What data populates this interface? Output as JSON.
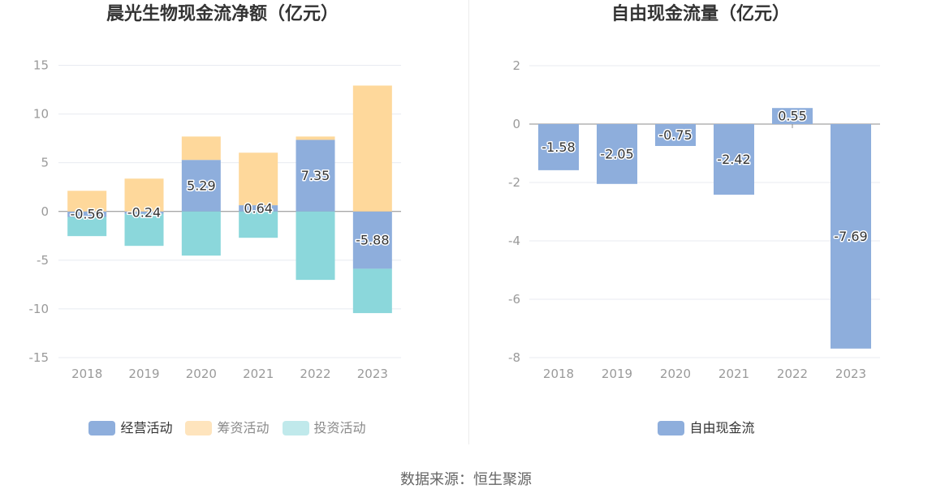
{
  "footer": {
    "source": "数据来源：恒生聚源"
  },
  "chart_data": [
    {
      "type": "bar",
      "stacked": true,
      "title": "晨光生物现金流净额（亿元）",
      "categories": [
        "2018",
        "2019",
        "2020",
        "2021",
        "2022",
        "2023"
      ],
      "series": [
        {
          "name": "经营活动",
          "values": [
            -0.56,
            -0.24,
            5.29,
            0.64,
            7.35,
            -5.88
          ],
          "color": "#8eaedc",
          "legend_color": "#8eaedc",
          "legend_text_color": "#333333",
          "data_labels": true
        },
        {
          "name": "筹资活动",
          "values": [
            2.12,
            3.37,
            2.4,
            5.39,
            0.34,
            12.92
          ],
          "color": "#fed89b",
          "legend_color": "#fee4bd",
          "legend_text_color": "#8a8a8a",
          "data_labels": false
        },
        {
          "name": "投资活动",
          "values": [
            -1.97,
            -3.29,
            -4.53,
            -2.7,
            -7.02,
            -4.55
          ],
          "color": "#8bd7db",
          "legend_color": "#c0e9eb",
          "legend_text_color": "#8a8a8a",
          "data_labels": false
        }
      ],
      "ylim": [
        -15,
        15
      ],
      "yticks": [
        15,
        10,
        5,
        0,
        -5,
        -10,
        -15
      ],
      "grid": true,
      "legend": "bottom"
    },
    {
      "type": "bar",
      "stacked": false,
      "title": "自由现金流量（亿元）",
      "categories": [
        "2018",
        "2019",
        "2020",
        "2021",
        "2022",
        "2023"
      ],
      "series": [
        {
          "name": "自由现金流",
          "values": [
            -1.58,
            -2.05,
            -0.75,
            -2.42,
            0.55,
            -7.69
          ],
          "color": "#8eaedc",
          "legend_color": "#8eaedc",
          "legend_text_color": "#333333",
          "data_labels": true
        }
      ],
      "ylim": [
        -8,
        2
      ],
      "yticks": [
        2,
        0,
        -2,
        -4,
        -6,
        -8
      ],
      "grid": true,
      "legend": "bottom"
    }
  ]
}
